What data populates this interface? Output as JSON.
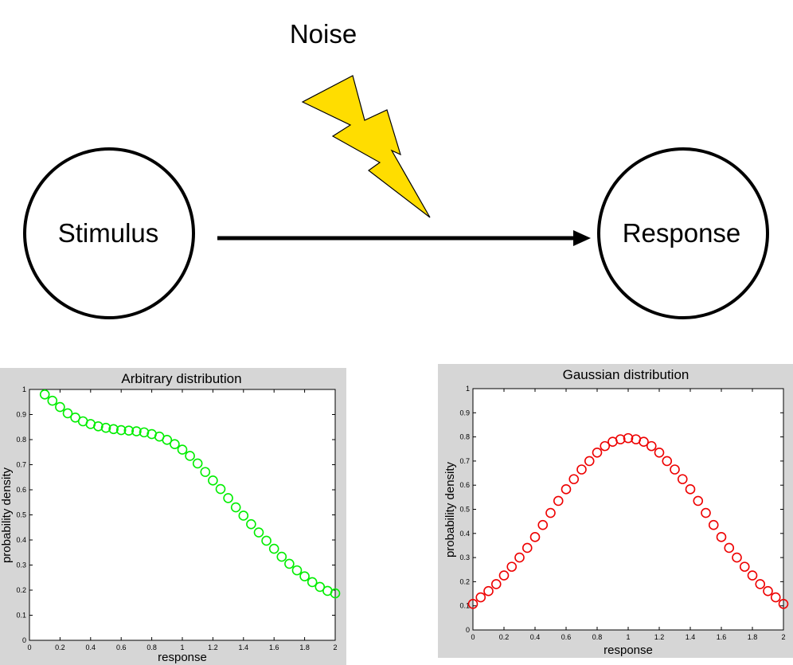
{
  "diagram": {
    "noise_label": "Noise",
    "stimulus_label": "Stimulus",
    "response_label": "Response",
    "bolt_color": "#ffdd00",
    "arrow_color": "#000000"
  },
  "chart_data": [
    {
      "type": "scatter",
      "title": "Arbitrary distribution",
      "xlabel": "response",
      "ylabel": "probability density",
      "xlim": [
        0,
        2
      ],
      "ylim": [
        0,
        1
      ],
      "xticks": [
        "0",
        "0.2",
        "0.4",
        "0.6",
        "0.8",
        "1",
        "1.2",
        "1.4",
        "1.6",
        "1.8",
        "2"
      ],
      "yticks": [
        "0",
        "0.1",
        "0.2",
        "0.3",
        "0.4",
        "0.5",
        "0.6",
        "0.7",
        "0.8",
        "0.9",
        "1"
      ],
      "marker": "circle",
      "color": "#00ee00",
      "x": [
        0.1,
        0.15,
        0.2,
        0.25,
        0.3,
        0.35,
        0.4,
        0.45,
        0.5,
        0.55,
        0.6,
        0.65,
        0.7,
        0.75,
        0.8,
        0.85,
        0.9,
        0.95,
        1.0,
        1.05,
        1.1,
        1.15,
        1.2,
        1.25,
        1.3,
        1.35,
        1.4,
        1.45,
        1.5,
        1.55,
        1.6,
        1.65,
        1.7,
        1.75,
        1.8,
        1.85,
        1.9,
        1.95,
        2.0
      ],
      "y": [
        0.98,
        0.955,
        0.93,
        0.905,
        0.888,
        0.873,
        0.862,
        0.853,
        0.847,
        0.842,
        0.838,
        0.836,
        0.833,
        0.829,
        0.822,
        0.812,
        0.799,
        0.782,
        0.76,
        0.735,
        0.705,
        0.671,
        0.637,
        0.603,
        0.567,
        0.53,
        0.497,
        0.463,
        0.43,
        0.397,
        0.365,
        0.333,
        0.305,
        0.279,
        0.255,
        0.232,
        0.213,
        0.197,
        0.187
      ]
    },
    {
      "type": "scatter",
      "title": "Gaussian distribution",
      "xlabel": "response",
      "ylabel": "probability density",
      "xlim": [
        0,
        2
      ],
      "ylim": [
        0,
        1
      ],
      "xticks": [
        "0",
        "0.2",
        "0.4",
        "0.6",
        "0.8",
        "1",
        "1.2",
        "1.4",
        "1.6",
        "1.8",
        "2"
      ],
      "yticks": [
        "0",
        "0.1",
        "0.2",
        "0.3",
        "0.4",
        "0.5",
        "0.6",
        "0.7",
        "0.8",
        "0.9",
        "1"
      ],
      "marker": "circle",
      "color": "#ee0000",
      "x": [
        0.0,
        0.05,
        0.1,
        0.15,
        0.2,
        0.25,
        0.3,
        0.35,
        0.4,
        0.45,
        0.5,
        0.55,
        0.6,
        0.65,
        0.7,
        0.75,
        0.8,
        0.85,
        0.9,
        0.95,
        1.0,
        1.05,
        1.1,
        1.15,
        1.2,
        1.25,
        1.3,
        1.35,
        1.4,
        1.45,
        1.5,
        1.55,
        1.6,
        1.65,
        1.7,
        1.75,
        1.8,
        1.85,
        1.9,
        1.95,
        2.0
      ],
      "y": [
        0.108,
        0.135,
        0.161,
        0.19,
        0.226,
        0.262,
        0.3,
        0.34,
        0.385,
        0.435,
        0.485,
        0.535,
        0.583,
        0.625,
        0.665,
        0.7,
        0.735,
        0.762,
        0.78,
        0.79,
        0.795,
        0.79,
        0.78,
        0.762,
        0.735,
        0.7,
        0.665,
        0.625,
        0.583,
        0.535,
        0.485,
        0.435,
        0.385,
        0.34,
        0.3,
        0.262,
        0.226,
        0.19,
        0.161,
        0.135,
        0.108
      ]
    }
  ]
}
